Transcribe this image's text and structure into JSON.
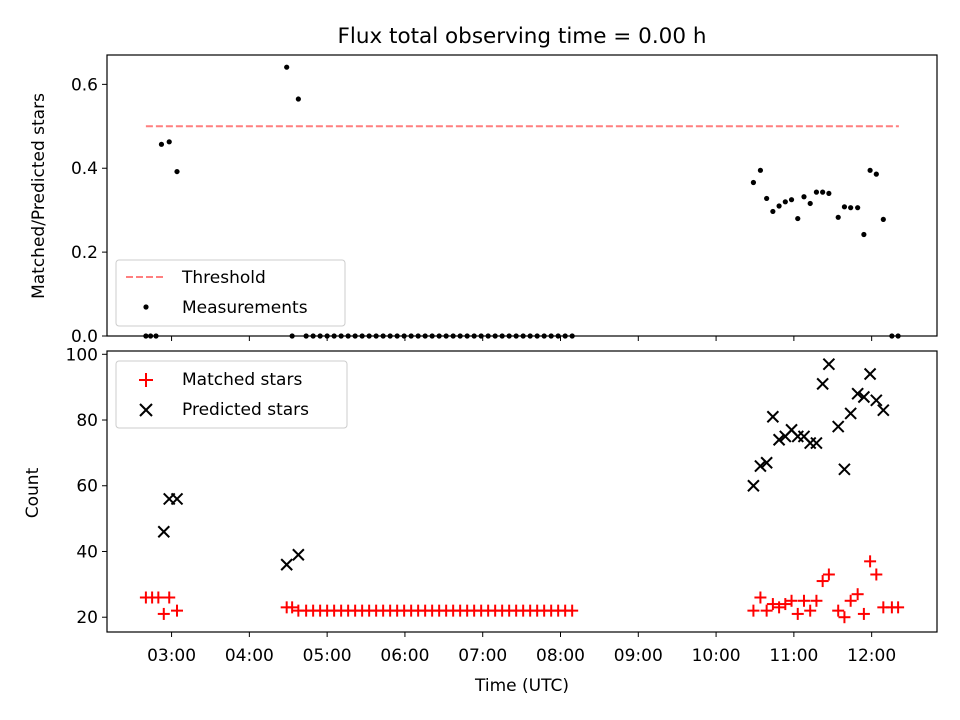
{
  "figure": {
    "title": "Flux total observing time = 0.00 h",
    "xlabel": "Time (UTC)"
  },
  "chart_data": [
    {
      "type": "scatter",
      "panel": "top",
      "ylabel": "Matched/Predicted stars",
      "xlim": [
        2.17,
        12.84
      ],
      "ylim": [
        0,
        0.67
      ],
      "yticks": [
        0.0,
        0.2,
        0.4,
        0.6
      ],
      "grid": false,
      "legend_position": "lower-left",
      "threshold": {
        "name": "Threshold",
        "value": 0.5,
        "x": [
          2.67,
          12.35
        ],
        "color": "#ff7f7f",
        "style": "dashed"
      },
      "series": [
        {
          "name": "Measurements",
          "color": "#000000",
          "marker": "dot",
          "points": [
            [
              2.67,
              0
            ],
            [
              2.73,
              0
            ],
            [
              2.8,
              0
            ],
            [
              2.87,
              0.457
            ],
            [
              2.97,
              0.463
            ],
            [
              3.07,
              0.392
            ],
            [
              4.48,
              0.641
            ],
            [
              4.55,
              0
            ],
            [
              4.63,
              0.565
            ],
            [
              4.73,
              0
            ],
            [
              4.82,
              0
            ],
            [
              4.91,
              0
            ],
            [
              5.0,
              0
            ],
            [
              5.09,
              0
            ],
            [
              5.18,
              0
            ],
            [
              5.27,
              0
            ],
            [
              5.36,
              0
            ],
            [
              5.45,
              0
            ],
            [
              5.54,
              0
            ],
            [
              5.63,
              0
            ],
            [
              5.72,
              0
            ],
            [
              5.81,
              0
            ],
            [
              5.9,
              0
            ],
            [
              5.99,
              0
            ],
            [
              6.08,
              0
            ],
            [
              6.17,
              0
            ],
            [
              6.26,
              0
            ],
            [
              6.35,
              0
            ],
            [
              6.44,
              0
            ],
            [
              6.53,
              0
            ],
            [
              6.62,
              0
            ],
            [
              6.71,
              0
            ],
            [
              6.8,
              0
            ],
            [
              6.89,
              0
            ],
            [
              6.98,
              0
            ],
            [
              7.07,
              0
            ],
            [
              7.16,
              0
            ],
            [
              7.25,
              0
            ],
            [
              7.34,
              0
            ],
            [
              7.43,
              0
            ],
            [
              7.52,
              0
            ],
            [
              7.61,
              0
            ],
            [
              7.7,
              0
            ],
            [
              7.79,
              0
            ],
            [
              7.88,
              0
            ],
            [
              7.97,
              0
            ],
            [
              8.06,
              0
            ],
            [
              8.15,
              0
            ],
            [
              10.48,
              0.366
            ],
            [
              10.57,
              0.395
            ],
            [
              10.65,
              0.328
            ],
            [
              10.73,
              0.297
            ],
            [
              10.81,
              0.31
            ],
            [
              10.89,
              0.32
            ],
            [
              10.97,
              0.325
            ],
            [
              11.05,
              0.28
            ],
            [
              11.13,
              0.332
            ],
            [
              11.21,
              0.316
            ],
            [
              11.29,
              0.343
            ],
            [
              11.37,
              0.343
            ],
            [
              11.45,
              0.34
            ],
            [
              11.57,
              0.283
            ],
            [
              11.65,
              0.308
            ],
            [
              11.73,
              0.306
            ],
            [
              11.82,
              0.306
            ],
            [
              11.9,
              0.242
            ],
            [
              11.98,
              0.395
            ],
            [
              12.06,
              0.386
            ],
            [
              12.15,
              0.278
            ],
            [
              12.26,
              0
            ],
            [
              12.34,
              0
            ]
          ]
        }
      ]
    },
    {
      "type": "scatter",
      "panel": "bottom",
      "ylabel": "Count",
      "xlim": [
        2.17,
        12.84
      ],
      "ylim": [
        15.5,
        101
      ],
      "yticks": [
        20,
        40,
        60,
        80,
        100
      ],
      "xticks": [
        "03:00",
        "04:00",
        "05:00",
        "06:00",
        "07:00",
        "08:00",
        "09:00",
        "10:00",
        "11:00",
        "12:00"
      ],
      "xtick_values": [
        3,
        4,
        5,
        6,
        7,
        8,
        9,
        10,
        11,
        12
      ],
      "grid": false,
      "legend_position": "upper-left",
      "series": [
        {
          "name": "Matched stars",
          "color": "#ff0000",
          "marker": "plus",
          "points": [
            [
              2.67,
              26
            ],
            [
              2.75,
              26
            ],
            [
              2.83,
              26
            ],
            [
              2.9,
              21
            ],
            [
              2.97,
              26
            ],
            [
              3.07,
              22
            ],
            [
              4.48,
              23
            ],
            [
              4.55,
              23
            ],
            [
              4.63,
              22
            ],
            [
              4.73,
              22
            ],
            [
              4.82,
              22
            ],
            [
              4.91,
              22
            ],
            [
              5.0,
              22
            ],
            [
              5.09,
              22
            ],
            [
              5.18,
              22
            ],
            [
              5.27,
              22
            ],
            [
              5.36,
              22
            ],
            [
              5.45,
              22
            ],
            [
              5.54,
              22
            ],
            [
              5.63,
              22
            ],
            [
              5.72,
              22
            ],
            [
              5.81,
              22
            ],
            [
              5.9,
              22
            ],
            [
              5.99,
              22
            ],
            [
              6.08,
              22
            ],
            [
              6.17,
              22
            ],
            [
              6.26,
              22
            ],
            [
              6.35,
              22
            ],
            [
              6.44,
              22
            ],
            [
              6.53,
              22
            ],
            [
              6.62,
              22
            ],
            [
              6.71,
              22
            ],
            [
              6.8,
              22
            ],
            [
              6.89,
              22
            ],
            [
              6.98,
              22
            ],
            [
              7.07,
              22
            ],
            [
              7.16,
              22
            ],
            [
              7.25,
              22
            ],
            [
              7.34,
              22
            ],
            [
              7.43,
              22
            ],
            [
              7.52,
              22
            ],
            [
              7.61,
              22
            ],
            [
              7.7,
              22
            ],
            [
              7.79,
              22
            ],
            [
              7.88,
              22
            ],
            [
              7.97,
              22
            ],
            [
              8.06,
              22
            ],
            [
              8.15,
              22
            ],
            [
              10.48,
              22
            ],
            [
              10.57,
              26
            ],
            [
              10.65,
              22
            ],
            [
              10.73,
              24
            ],
            [
              10.81,
              23
            ],
            [
              10.89,
              24
            ],
            [
              10.97,
              25
            ],
            [
              11.05,
              21
            ],
            [
              11.13,
              25
            ],
            [
              11.21,
              22
            ],
            [
              11.29,
              25
            ],
            [
              11.37,
              31
            ],
            [
              11.45,
              33
            ],
            [
              11.57,
              22
            ],
            [
              11.65,
              20
            ],
            [
              11.73,
              25
            ],
            [
              11.82,
              27
            ],
            [
              11.9,
              21
            ],
            [
              11.98,
              37
            ],
            [
              12.06,
              33
            ],
            [
              12.15,
              23
            ],
            [
              12.26,
              23
            ],
            [
              12.34,
              23
            ]
          ]
        },
        {
          "name": "Predicted stars",
          "color": "#000000",
          "marker": "x",
          "points": [
            [
              2.9,
              46
            ],
            [
              2.97,
              56
            ],
            [
              3.07,
              56
            ],
            [
              4.48,
              36
            ],
            [
              4.63,
              39
            ],
            [
              10.48,
              60
            ],
            [
              10.57,
              66
            ],
            [
              10.65,
              67
            ],
            [
              10.73,
              81
            ],
            [
              10.81,
              74
            ],
            [
              10.89,
              75
            ],
            [
              10.97,
              77
            ],
            [
              11.05,
              75
            ],
            [
              11.13,
              75
            ],
            [
              11.21,
              73
            ],
            [
              11.29,
              73
            ],
            [
              11.37,
              91
            ],
            [
              11.45,
              97
            ],
            [
              11.57,
              78
            ],
            [
              11.65,
              65
            ],
            [
              11.73,
              82
            ],
            [
              11.82,
              88
            ],
            [
              11.9,
              87
            ],
            [
              11.98,
              94
            ],
            [
              12.06,
              86
            ],
            [
              12.15,
              83
            ]
          ]
        }
      ]
    }
  ]
}
